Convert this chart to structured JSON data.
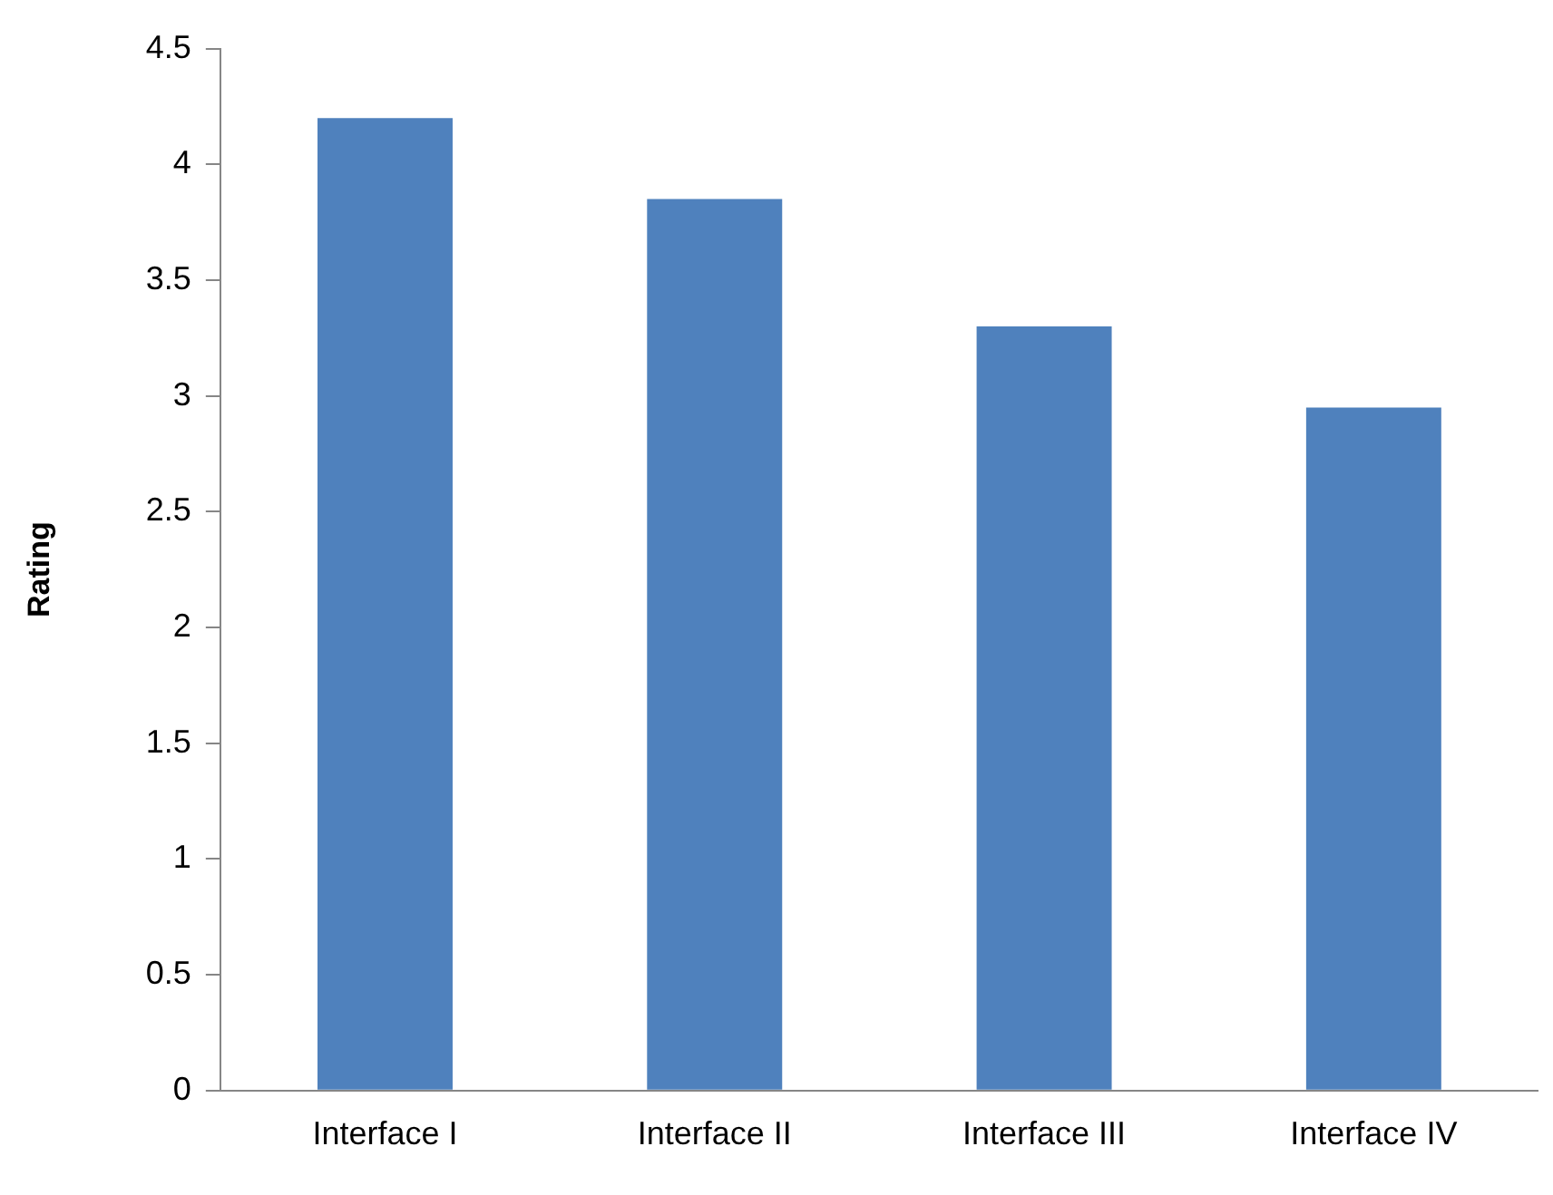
{
  "chart_data": {
    "type": "bar",
    "ylabel": "Rating",
    "categories": [
      "Interface I",
      "Interface II",
      "Interface III",
      "Interface IV"
    ],
    "values": [
      4.2,
      3.85,
      3.3,
      2.95
    ],
    "color": "#4f81bd",
    "ylim": [
      0,
      4.5
    ],
    "yticks": [
      0,
      0.5,
      1,
      1.5,
      2,
      2.5,
      3,
      3.5,
      4,
      4.5
    ],
    "grid": false,
    "legend": false
  }
}
